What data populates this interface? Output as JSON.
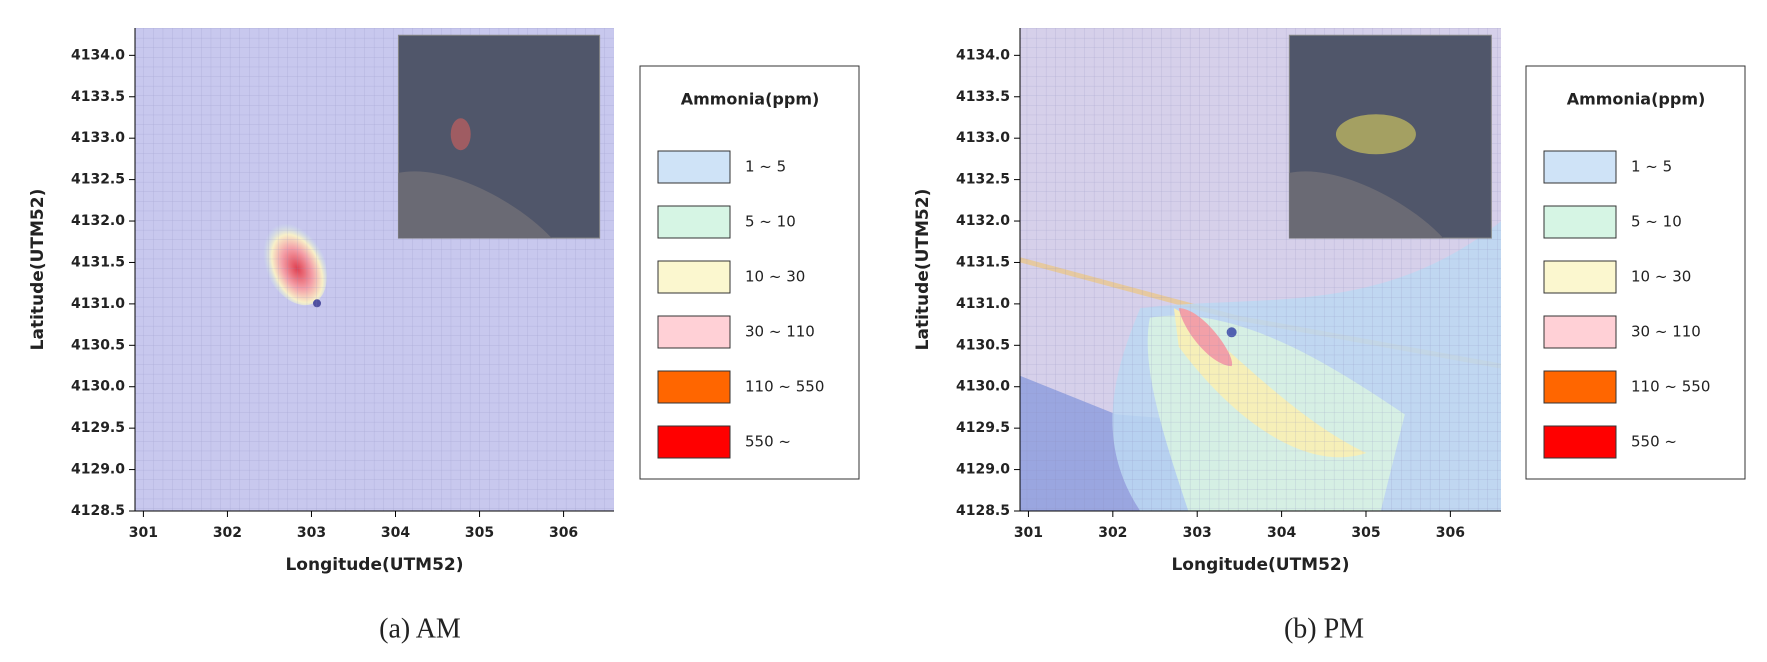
{
  "chart_data": [
    {
      "type": "map",
      "caption": "(a) AM",
      "xlabel": "Longitude(UTM52)",
      "ylabel": "Latitude(UTM52)",
      "xlim": [
        300.9,
        306.6
      ],
      "ylim": [
        4128.5,
        4134.33
      ],
      "xticks": [
        301,
        302,
        303,
        304,
        305,
        306
      ],
      "yticks": [
        4128.5,
        {
          "value": 4129,
          "label": "4129.0"
        },
        4129.5,
        {
          "value": 4130,
          "label": "4130.0"
        },
        4130.5,
        {
          "value": 4131,
          "label": "4131.0"
        },
        4131.5,
        {
          "value": 4132,
          "label": "4132.0"
        },
        4132.5,
        {
          "value": 4133,
          "label": "4133.0"
        },
        4133.5,
        {
          "value": 4134,
          "label": "4134.0"
        }
      ],
      "legend_title": "Ammonia(ppm)",
      "legend": [
        {
          "label": "1 ~ 5",
          "color": "#cfe3f7"
        },
        {
          "label": "5 ~ 10",
          "color": "#d6f5e4"
        },
        {
          "label": "10 ~ 30",
          "color": "#fbf7cf"
        },
        {
          "label": "30 ~ 110",
          "color": "#ffd0d6"
        },
        {
          "label": "110 ~ 550",
          "color": "#ff6600"
        },
        {
          "label": "550 ~",
          "color": "#ff0000"
        }
      ]
    },
    {
      "type": "map",
      "caption": "(b) PM",
      "xlabel": "Longitude(UTM52)",
      "ylabel": "Latitude(UTM52)",
      "xlim": [
        300.9,
        306.6
      ],
      "ylim": [
        4128.5,
        4134.33
      ],
      "xticks": [
        301,
        302,
        303,
        304,
        305,
        306
      ],
      "yticks": [
        4128.5,
        {
          "value": 4129,
          "label": "4129.0"
        },
        4129.5,
        {
          "value": 4130,
          "label": "4130.0"
        },
        4130.5,
        {
          "value": 4131,
          "label": "4131.0"
        },
        4131.5,
        {
          "value": 4132,
          "label": "4132.0"
        },
        4132.5,
        {
          "value": 4133,
          "label": "4133.0"
        },
        4133.5,
        {
          "value": 4134,
          "label": "4134.0"
        }
      ],
      "legend_title": "Ammonia(ppm)",
      "legend": [
        {
          "label": "1 ~ 5",
          "color": "#cfe3f7"
        },
        {
          "label": "5 ~ 10",
          "color": "#d6f5e4"
        },
        {
          "label": "10 ~ 30",
          "color": "#fbf7cf"
        },
        {
          "label": "30 ~ 110",
          "color": "#ffd0d6"
        },
        {
          "label": "110 ~ 550",
          "color": "#ff6600"
        },
        {
          "label": "550 ~",
          "color": "#ff0000"
        }
      ]
    }
  ]
}
